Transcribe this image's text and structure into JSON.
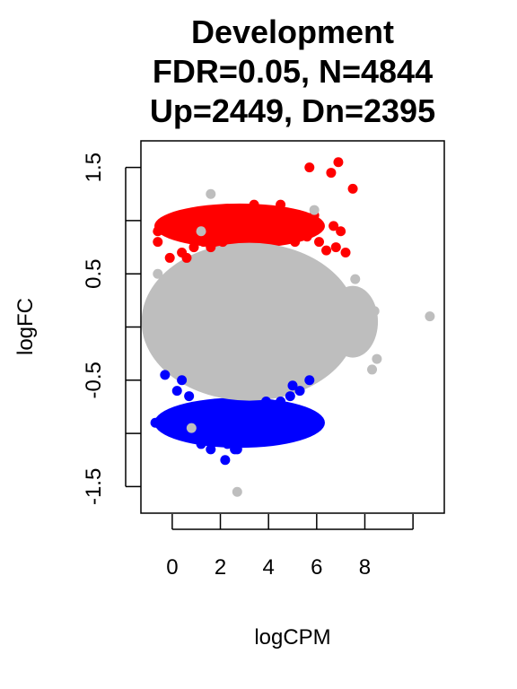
{
  "chart_data": {
    "type": "scatter",
    "title_lines": [
      "Development",
      "FDR=0.05, N=4844",
      "Up=2449, Dn=2395"
    ],
    "xlabel": "logCPM",
    "ylabel": "logFC",
    "xlim": [
      -1.3,
      11.3
    ],
    "ylim": [
      -1.75,
      1.75
    ],
    "x_ticks": [
      0,
      2,
      4,
      6,
      8,
      10
    ],
    "x_tick_labels": [
      "0",
      "2",
      "4",
      "6",
      "8",
      ""
    ],
    "y_ticks": [
      -1.5,
      -1.0,
      -0.5,
      0.0,
      0.5,
      1.0,
      1.5
    ],
    "y_tick_labels": [
      "-1.5",
      "",
      "-0.5",
      "",
      "0.5",
      "",
      "1.5"
    ],
    "grid": false,
    "legend": "none",
    "colors": {
      "up": "#ff0000",
      "down": "#0000ff",
      "not_significant": "#bebebe",
      "axis": "#000000"
    },
    "series": [
      {
        "values": [
          [
            -0.6,
            0.8
          ],
          [
            -0.6,
            0.9
          ],
          [
            -0.1,
            0.65
          ],
          [
            0.4,
            0.7
          ],
          [
            0.9,
            0.75
          ],
          [
            1.3,
            0.8
          ],
          [
            1.8,
            1.0
          ],
          [
            2.2,
            0.9
          ],
          [
            2.6,
            1.0
          ],
          [
            2.9,
            1.05
          ],
          [
            3.2,
            1.1
          ],
          [
            3.4,
            1.15
          ],
          [
            3.7,
            1.05
          ],
          [
            4.0,
            1.1
          ],
          [
            4.3,
            0.95
          ],
          [
            4.5,
            1.15
          ],
          [
            4.9,
            1.0
          ],
          [
            5.3,
            0.95
          ],
          [
            5.7,
            1.5
          ],
          [
            6.9,
            1.55
          ],
          [
            6.6,
            1.45
          ],
          [
            7.5,
            1.3
          ],
          [
            5.9,
            1.05
          ],
          [
            6.7,
            0.95
          ],
          [
            7.0,
            0.9
          ],
          [
            6.1,
            0.8
          ],
          [
            6.8,
            0.75
          ],
          [
            7.2,
            0.7
          ],
          [
            5.6,
            0.85
          ],
          [
            4.7,
            0.9
          ],
          [
            2.1,
            0.8
          ],
          [
            1.6,
            0.75
          ],
          [
            3.9,
            0.95
          ],
          [
            5.1,
            0.8
          ],
          [
            6.4,
            0.72
          ],
          [
            0.6,
            0.65
          ]
        ]
      },
      {
        "values": [
          [
            -0.7,
            -0.9
          ],
          [
            -0.3,
            -0.45
          ],
          [
            0.2,
            -0.6
          ],
          [
            0.7,
            -0.65
          ],
          [
            1.1,
            -0.75
          ],
          [
            1.4,
            -0.9
          ],
          [
            1.7,
            -0.85
          ],
          [
            2.0,
            -1.0
          ],
          [
            2.3,
            -1.1
          ],
          [
            2.6,
            -1.15
          ],
          [
            2.7,
            -1.0
          ],
          [
            3.0,
            -0.95
          ],
          [
            3.3,
            -0.85
          ],
          [
            3.7,
            -0.8
          ],
          [
            4.1,
            -0.75
          ],
          [
            4.5,
            -0.7
          ],
          [
            4.9,
            -0.65
          ],
          [
            5.3,
            -0.6
          ],
          [
            5.7,
            -0.5
          ],
          [
            0.9,
            -1.0
          ],
          [
            1.2,
            -1.1
          ],
          [
            1.6,
            -1.15
          ],
          [
            1.9,
            -1.05
          ],
          [
            2.2,
            -1.25
          ],
          [
            2.7,
            -1.15
          ],
          [
            3.5,
            -0.95
          ],
          [
            4.2,
            -0.85
          ],
          [
            4.6,
            -0.8
          ],
          [
            1.0,
            -0.95
          ],
          [
            0.4,
            -0.5
          ],
          [
            5.0,
            -0.55
          ],
          [
            3.9,
            -0.7
          ]
        ]
      },
      {
        "values": [
          [
            2.7,
            -1.55
          ],
          [
            1.6,
            1.25
          ],
          [
            10.7,
            0.1
          ],
          [
            5.9,
            1.1
          ],
          [
            -0.6,
            0.5
          ],
          [
            0.8,
            -0.95
          ],
          [
            8.5,
            -0.3
          ],
          [
            8.3,
            -0.4
          ],
          [
            7.6,
            0.45
          ],
          [
            8.0,
            0.2
          ],
          [
            8.4,
            0.15
          ],
          [
            7.3,
            -0.2
          ],
          [
            1.2,
            0.9
          ],
          [
            0.0,
            -0.1
          ],
          [
            3.0,
            0.0
          ]
        ]
      }
    ]
  }
}
